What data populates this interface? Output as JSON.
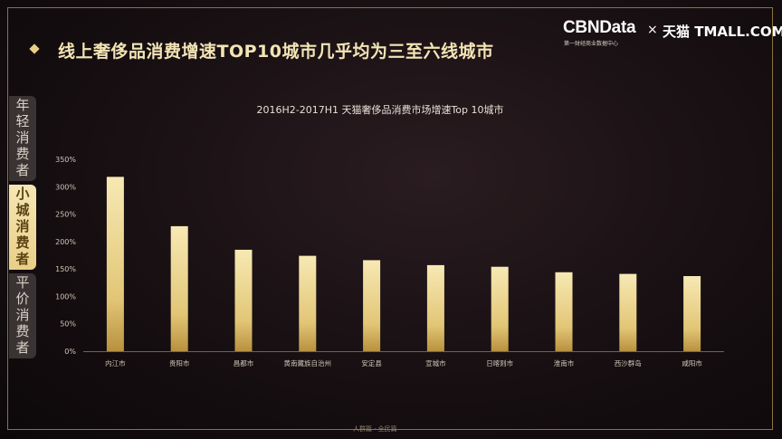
{
  "header": {
    "title": "线上奢侈品消费增速TOP10城市几乎均为三至六线城市"
  },
  "brand": {
    "main": "CBNData",
    "sub": "第一财经商业数据中心",
    "separator": "×",
    "partner": "天猫 TMALL.COM"
  },
  "side_tabs": [
    {
      "label": "年轻消费者",
      "active": false
    },
    {
      "label": "小城消费者",
      "active": true
    },
    {
      "label": "平价消费者",
      "active": false
    }
  ],
  "footer": {
    "text": "人群篇 · 全民篇"
  },
  "colors": {
    "accent": "#e9cf86",
    "bar_top": "#f6e6ad",
    "bar_bottom": "#c9a24f",
    "axis_text": "#cfc6b8",
    "background": "#170f12"
  },
  "chart_data": {
    "type": "bar",
    "title": "2016H2-2017H1 天猫奢侈品消费市场增速Top 10城市",
    "xlabel": "",
    "ylabel": "",
    "categories": [
      "内江市",
      "贵阳市",
      "昌都市",
      "黄南藏族自治州",
      "安定县",
      "宣城市",
      "日喀则市",
      "淮南市",
      "西沙群岛",
      "咸阳市"
    ],
    "values": [
      318,
      228,
      185,
      174,
      166,
      157,
      154,
      144,
      141,
      137
    ],
    "ylim": [
      0,
      350
    ],
    "yticks": [
      0,
      50,
      100,
      150,
      200,
      250,
      300,
      350
    ],
    "ytick_labels": [
      "0%",
      "50%",
      "100%",
      "150%",
      "200%",
      "250%",
      "300%",
      "350%"
    ],
    "grid": false,
    "legend": "none"
  }
}
